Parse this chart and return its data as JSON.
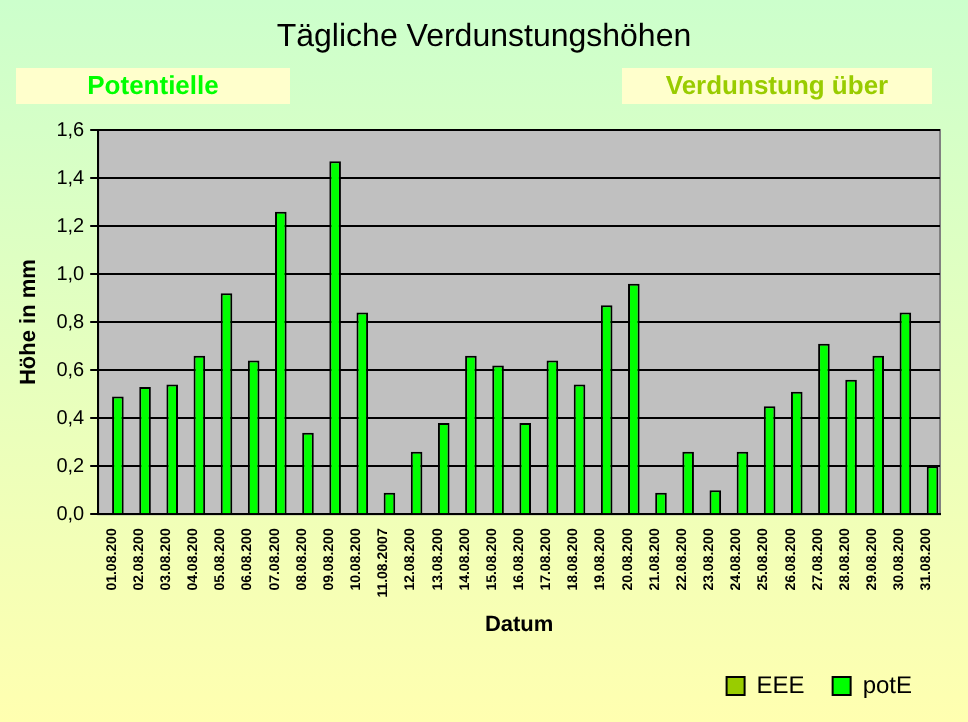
{
  "chart_data": {
    "type": "bar",
    "title": "Tägliche Verdunstungshöhen",
    "xlabel": "Datum",
    "ylabel": "Höhe in mm",
    "annotations": [
      "Potentielle",
      "Verdunstung über"
    ],
    "categories": [
      "01.08.200",
      "02.08.200",
      "03.08.200",
      "04.08.200",
      "05.08.200",
      "06.08.200",
      "07.08.200",
      "08.08.200",
      "09.08.200",
      "10.08.200",
      "11.08.2007",
      "12.08.200",
      "13.08.200",
      "14.08.200",
      "15.08.200",
      "16.08.200",
      "17.08.200",
      "18.08.200",
      "19.08.200",
      "20.08.200",
      "21.08.200",
      "22.08.200",
      "23.08.200",
      "24.08.200",
      "25.08.200",
      "26.08.200",
      "27.08.200",
      "28.08.200",
      "29.08.200",
      "30.08.200",
      "31.08.200"
    ],
    "series": [
      {
        "name": "EEE",
        "color": "#99cc00",
        "values": [
          null,
          null,
          null,
          null,
          null,
          null,
          null,
          null,
          null,
          null,
          null,
          null,
          null,
          null,
          null,
          null,
          null,
          null,
          null,
          null,
          null,
          null,
          null,
          null,
          null,
          null,
          null,
          null,
          null,
          null,
          null
        ]
      },
      {
        "name": "potE",
        "color": "#00ff00",
        "values": [
          0.49,
          0.53,
          0.54,
          0.66,
          0.92,
          0.64,
          1.26,
          0.34,
          1.47,
          0.84,
          0.09,
          0.26,
          0.38,
          0.66,
          0.62,
          0.38,
          0.64,
          0.54,
          0.87,
          0.96,
          0.09,
          0.26,
          0.1,
          0.26,
          0.45,
          0.51,
          0.71,
          0.56,
          0.66,
          0.84,
          0.2
        ]
      }
    ],
    "ylim": [
      0,
      1.6
    ],
    "yticks": [
      {
        "value": 0,
        "label": "0,0"
      },
      {
        "value": 0.2,
        "label": "0,2"
      },
      {
        "value": 0.4,
        "label": "0,4"
      },
      {
        "value": 0.6,
        "label": "0,6"
      },
      {
        "value": 0.8,
        "label": "0,8"
      },
      {
        "value": 1,
        "label": "1,0"
      },
      {
        "value": 1.2,
        "label": "1,2"
      },
      {
        "value": 1.4,
        "label": "1,4"
      },
      {
        "value": 1.6,
        "label": "1,6"
      }
    ],
    "grid": "y",
    "legend": "bottom right"
  }
}
